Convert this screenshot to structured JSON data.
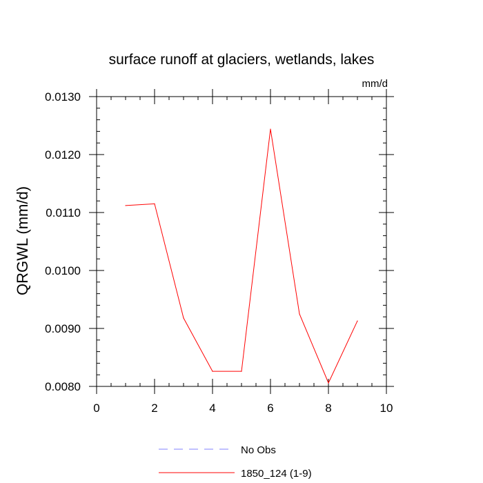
{
  "chart_data": {
    "type": "line",
    "title": "surface runoff at glaciers, wetlands, lakes",
    "units_label": "mm/d",
    "xlabel": "",
    "ylabel": "QRGWL  (mm/d)",
    "xlim": [
      0,
      10
    ],
    "ylim": [
      0.008,
      0.013
    ],
    "x_ticks": [
      0,
      2,
      4,
      6,
      8,
      10
    ],
    "x_tick_labels": [
      "0",
      "2",
      "4",
      "6",
      "8",
      "10"
    ],
    "x_minor_step": 0.5,
    "y_ticks": [
      0.008,
      0.009,
      0.01,
      0.011,
      0.012,
      0.013
    ],
    "y_tick_labels": [
      "0.0080",
      "0.0090",
      "0.0100",
      "0.0110",
      "0.0120",
      "0.0130"
    ],
    "y_minor_step": 0.0002,
    "grid": false,
    "series": [
      {
        "name": "1850_124 (1-9)",
        "color": "#ff0000",
        "dash": "solid",
        "x": [
          1,
          2,
          3,
          4,
          5,
          6,
          7,
          8,
          9
        ],
        "y": [
          0.01112,
          0.01115,
          0.00918,
          0.00826,
          0.00826,
          0.01244,
          0.00925,
          0.00806,
          0.00913
        ]
      }
    ],
    "legend": {
      "placement": "bottom-center",
      "entries": [
        {
          "label": "No Obs",
          "color": "#8080ff",
          "dash": "dashed"
        },
        {
          "label": "1850_124 (1-9)",
          "color": "#ff0000",
          "dash": "solid"
        }
      ]
    }
  }
}
